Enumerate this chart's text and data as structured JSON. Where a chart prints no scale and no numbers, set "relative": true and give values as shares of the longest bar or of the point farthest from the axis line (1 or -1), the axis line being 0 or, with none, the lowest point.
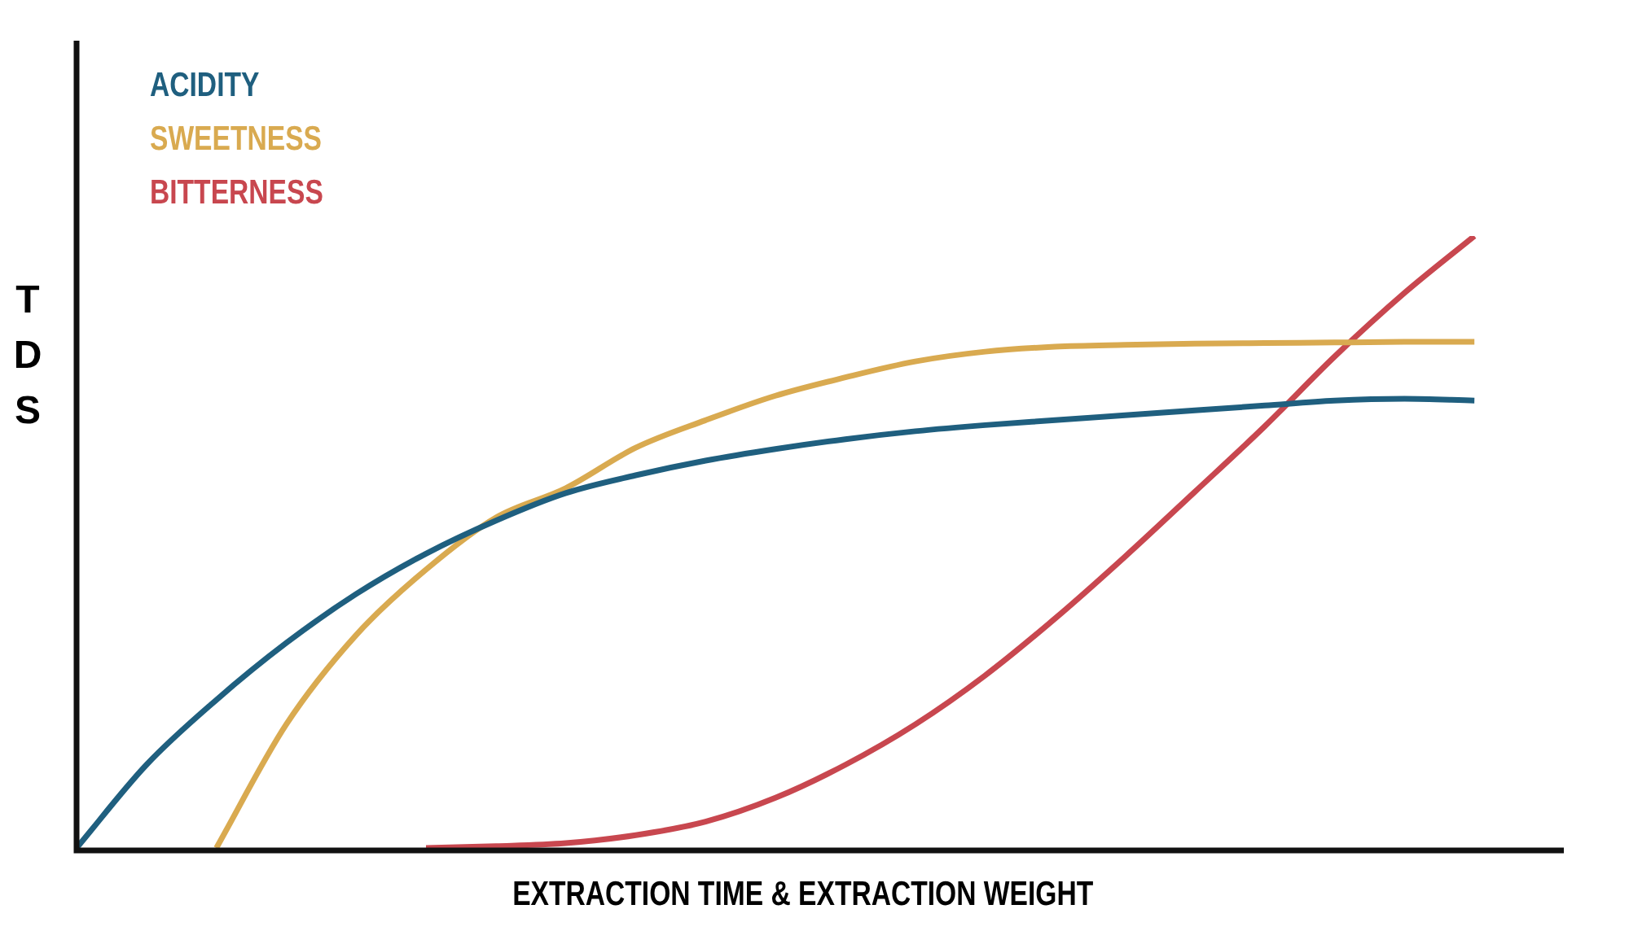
{
  "chart_data": {
    "type": "line",
    "relative": true,
    "xlabel": "EXTRACTION TIME & EXTRACTION WEIGHT",
    "ylabel": "TDS",
    "legend": "top left",
    "marker": "none",
    "line_style": "solid",
    "grid": false,
    "categories": [
      null,
      null,
      null,
      null,
      null,
      null,
      null,
      null,
      null,
      null,
      null,
      null,
      null,
      null,
      null,
      null,
      null,
      null,
      null,
      null,
      null,
      null
    ],
    "series": [
      {
        "name": "ACIDITY",
        "color": "#1f5f7f",
        "values": [
          0,
          0.136,
          0.242,
          0.335,
          0.415,
          0.481,
          0.535,
          0.58,
          0.609,
          0.633,
          0.652,
          0.668,
          0.681,
          0.691,
          0.699,
          0.707,
          0.715,
          0.723,
          0.731,
          0.734,
          0.731,
          null
        ]
      },
      {
        "name": "SWEETNESS",
        "color": "#d9aa50",
        "values": [
          null,
          null,
          0,
          0.202,
          0.348,
          0.455,
          0.54,
          0.588,
          0.654,
          0.699,
          0.739,
          0.769,
          0.795,
          0.811,
          0.819,
          0.822,
          0.824,
          0.825,
          0.826,
          0.827,
          0.827,
          null
        ]
      },
      {
        "name": "BITTERNESS",
        "color": "#c8474f",
        "values": [
          null,
          null,
          null,
          null,
          null,
          0,
          0.003,
          0.008,
          0.021,
          0.043,
          0.082,
          0.136,
          0.202,
          0.282,
          0.375,
          0.476,
          0.582,
          0.689,
          0.803,
          0.907,
          1,
          null
        ]
      }
    ]
  }
}
